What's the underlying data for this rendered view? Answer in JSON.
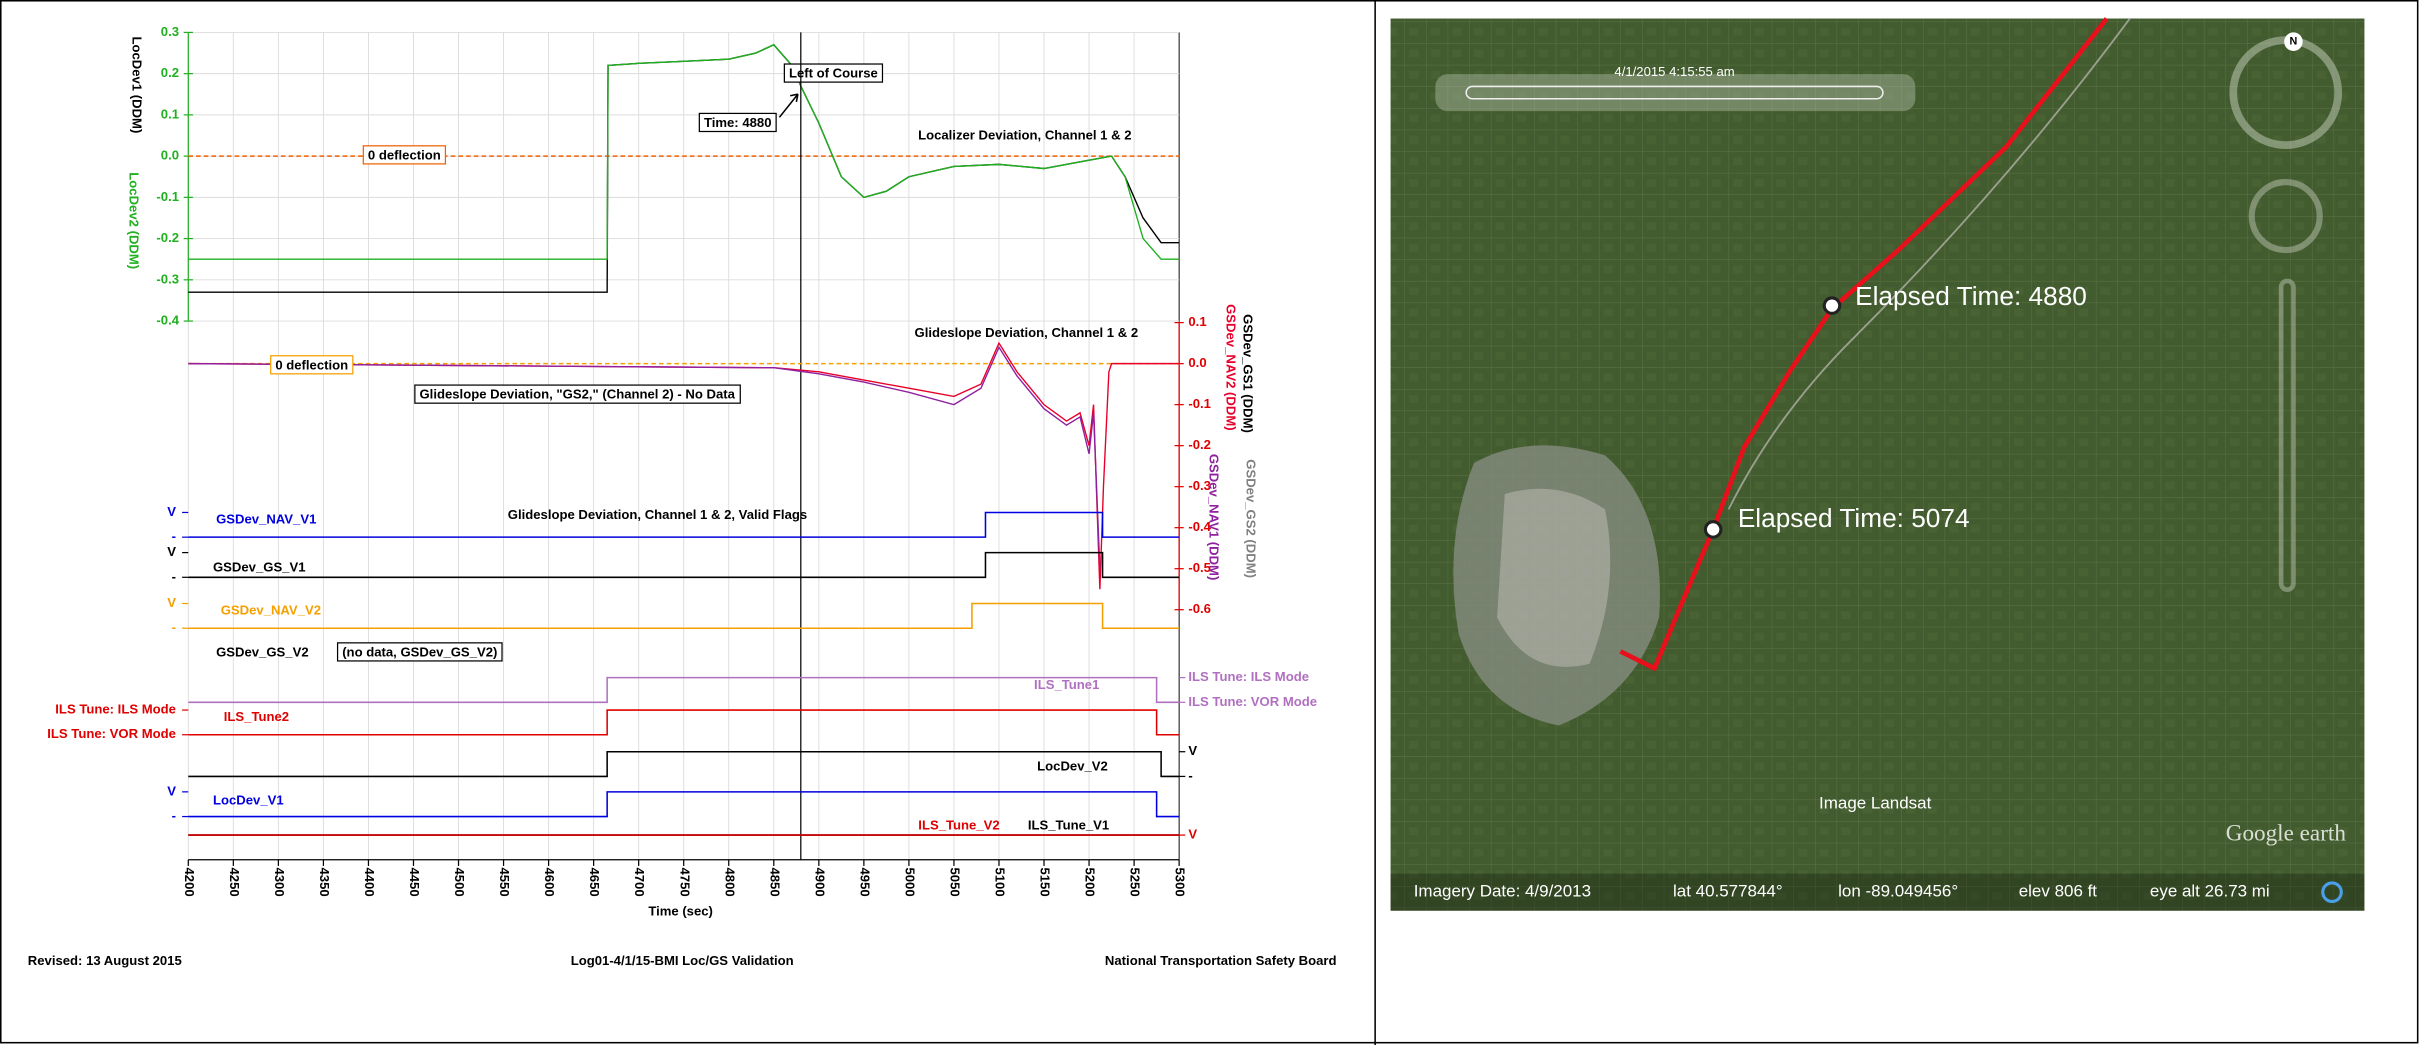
{
  "chart_data": [
    {
      "type": "line",
      "title": "Localizer Deviation, Channel 1 & 2",
      "xlim": [
        4200,
        5300
      ],
      "ylim": [
        -0.4,
        0.3
      ],
      "yticks": [
        0.3,
        0.2,
        0.1,
        {
          "value": 0,
          "label": "0.0"
        },
        -0.1,
        -0.2,
        -0.3,
        -0.4
      ],
      "grid": true,
      "cursor_x": 4880,
      "reference_line": {
        "value": 0,
        "label": "0 deflection",
        "color": "#f06000"
      },
      "annotations": [
        "Left of Course",
        "Time: 4880"
      ],
      "x": [
        4200,
        4665,
        4666,
        4700,
        4750,
        4800,
        4830,
        4850,
        4870,
        4880,
        4900,
        4925,
        4950,
        4975,
        5000,
        5050,
        5100,
        5150,
        5200,
        5225,
        5240,
        5260,
        5280,
        5300
      ],
      "series": [
        {
          "name": "LocDev1 (DDM)",
          "color": "#000000",
          "values": [
            -0.33,
            -0.33,
            0.22,
            0.225,
            0.23,
            0.235,
            0.25,
            0.27,
            0.22,
            0.17,
            0.08,
            -0.05,
            -0.1,
            -0.085,
            -0.05,
            -0.025,
            -0.02,
            -0.03,
            -0.01,
            0.0,
            -0.05,
            -0.15,
            -0.21,
            -0.21
          ]
        },
        {
          "name": "LocDev2 (DDM)",
          "color": "#20b020",
          "values": [
            -0.25,
            -0.25,
            0.22,
            0.225,
            0.23,
            0.235,
            0.25,
            0.27,
            0.22,
            0.17,
            0.08,
            -0.05,
            -0.1,
            -0.085,
            -0.05,
            -0.025,
            -0.02,
            -0.03,
            -0.01,
            0.0,
            -0.05,
            -0.2,
            -0.25,
            -0.25
          ]
        }
      ]
    },
    {
      "type": "line",
      "title": "Glideslope Deviation, Channel 1 & 2",
      "xlim": [
        4200,
        5300
      ],
      "ylim": [
        -0.6,
        0.1
      ],
      "yticks": [
        0.1,
        {
          "value": 0,
          "label": "0.0"
        },
        -0.1,
        -0.2,
        -0.3,
        -0.4,
        -0.5,
        -0.6
      ],
      "reference_line": {
        "value": 0,
        "label": "0 deflection",
        "color": "#f5a000"
      },
      "annotations": [
        "Glideslope Deviation, \"GS2,\" (Channel 2) - No Data"
      ],
      "axis_labels": [
        {
          "text": "GSDev_GS1 (DDM)",
          "color": "#000000"
        },
        {
          "text": "GSDev_GS2 (DDM)",
          "color": "#808080"
        }
      ],
      "x": [
        4200,
        4850,
        4900,
        4950,
        5000,
        5050,
        5080,
        5100,
        5120,
        5150,
        5175,
        5190,
        5200,
        5205,
        5212,
        5216,
        5222,
        5225,
        5300
      ],
      "series": [
        {
          "name": "GSDev_NAV2 (DDM)",
          "color": "#e8002a",
          "values": [
            0,
            -0.01,
            -0.02,
            -0.04,
            -0.06,
            -0.08,
            -0.05,
            0.05,
            -0.02,
            -0.1,
            -0.14,
            -0.12,
            -0.2,
            -0.1,
            -0.55,
            -0.3,
            -0.02,
            0,
            0
          ]
        },
        {
          "name": "GSDev_NAV1 (DDM)",
          "color": "#9020a0",
          "values": [
            0,
            -0.01,
            -0.025,
            -0.045,
            -0.07,
            -0.1,
            -0.06,
            0.04,
            -0.03,
            -0.11,
            -0.15,
            -0.13,
            -0.22,
            -0.12,
            -0.5,
            null,
            null,
            null,
            null
          ]
        }
      ]
    },
    {
      "type": "step",
      "title": "Glideslope Deviation, Channel 1 & 2, Valid Flags",
      "x_label": "Time (sec)",
      "xlim": [
        4200,
        5300
      ],
      "xticks": [
        4200,
        4250,
        4300,
        4350,
        4400,
        4450,
        4500,
        4550,
        4600,
        4650,
        4700,
        4750,
        4800,
        4850,
        4900,
        4950,
        5000,
        5050,
        5100,
        5150,
        5200,
        5250,
        5300
      ],
      "annotations": [
        "(no data, GSDev_GS_V2)"
      ],
      "series": [
        {
          "name": "GSDev_NAV_V1",
          "color": "#0000e0",
          "side": "left",
          "ticks": [
            {
              "value": 1,
              "label": "V"
            },
            {
              "value": 0,
              "label": "-"
            }
          ],
          "x": [
            4200,
            5085,
            5085,
            5215,
            5215,
            5300
          ],
          "values": [
            0,
            0,
            1,
            1,
            0,
            0
          ]
        },
        {
          "name": "GSDev_GS_V1",
          "color": "#000000",
          "side": "left",
          "ticks": [
            {
              "value": 1,
              "label": "V"
            },
            {
              "value": 0,
              "label": "-"
            }
          ],
          "x": [
            4200,
            5085,
            5085,
            5215,
            5215,
            5300
          ],
          "values": [
            0,
            0,
            1,
            1,
            0,
            0
          ]
        },
        {
          "name": "GSDev_NAV_V2",
          "color": "#f5a000",
          "side": "left",
          "ticks": [
            {
              "value": 1,
              "label": "V"
            },
            {
              "value": 0,
              "label": "-"
            }
          ],
          "x": [
            4200,
            5070,
            5070,
            5215,
            5215,
            5300
          ],
          "values": [
            0,
            0,
            1,
            1,
            0,
            0
          ]
        },
        {
          "name": "GSDev_GS_V2",
          "color": "#000000",
          "side": "left",
          "ticks": [],
          "x": [],
          "values": []
        },
        {
          "name": "ILS_Tune1",
          "color": "#b070c0",
          "side": "right",
          "ticks": [
            {
              "value": 1,
              "label": "ILS Tune: ILS Mode"
            },
            {
              "value": 0,
              "label": "ILS Tune: VOR Mode"
            }
          ],
          "x": [
            4200,
            4665,
            4665,
            5275,
            5275,
            5300
          ],
          "values": [
            0,
            0,
            1,
            1,
            0,
            0
          ]
        },
        {
          "name": "ILS_Tune2",
          "color": "#e00000",
          "side": "left",
          "ticks": [
            {
              "value": 1,
              "label": "ILS Tune: ILS Mode"
            },
            {
              "value": 0,
              "label": "ILS Tune: VOR Mode"
            }
          ],
          "x": [
            4200,
            4665,
            4665,
            5275,
            5275,
            5300
          ],
          "values": [
            0,
            0,
            1,
            1,
            0,
            0
          ]
        },
        {
          "name": "LocDev_V2",
          "color": "#000000",
          "side": "right",
          "ticks": [
            {
              "value": 1,
              "label": "V"
            },
            {
              "value": 0,
              "label": "-"
            }
          ],
          "x": [
            4200,
            4665,
            4665,
            5280,
            5280,
            5300
          ],
          "values": [
            0,
            0,
            1,
            1,
            0,
            0
          ]
        },
        {
          "name": "LocDev_V1",
          "color": "#0000e0",
          "side": "left",
          "ticks": [
            {
              "value": 1,
              "label": "V"
            },
            {
              "value": 0,
              "label": "-"
            }
          ],
          "x": [
            4200,
            4665,
            4665,
            5275,
            5275,
            5300
          ],
          "values": [
            0,
            0,
            1,
            1,
            0,
            0
          ]
        },
        {
          "name": "ILS_Tune_V1",
          "color": "#000000",
          "side": "right",
          "ticks": [],
          "x": [
            4200,
            5300
          ],
          "values": [
            0,
            0
          ]
        },
        {
          "name": "ILS_Tune_V2",
          "color": "#e00000",
          "side": "right",
          "ticks": [
            {
              "value": 0,
              "label": "V"
            }
          ],
          "x": [
            4200,
            5300
          ],
          "values": [
            0,
            0
          ]
        }
      ]
    }
  ],
  "footer": {
    "left": "Revised: 13 August 2015",
    "center": "Log01-4/1/15-BMI Loc/GS Validation",
    "right": "National Transportation Safety Board"
  },
  "map": {
    "timestamp": "4/1/2015   4:15:55 am",
    "markers": [
      "Elapsed Time: 4880",
      "Elapsed Time: 5074"
    ],
    "source": "Image Landsat",
    "brand": "Google earth",
    "status": {
      "imagery_date": "Imagery Date: 4/9/2013",
      "lat": "lat   40.577844°",
      "lon": "lon  -89.049456°",
      "elev": "elev   806 ft",
      "eye_alt": "eye alt  26.73 mi"
    }
  }
}
